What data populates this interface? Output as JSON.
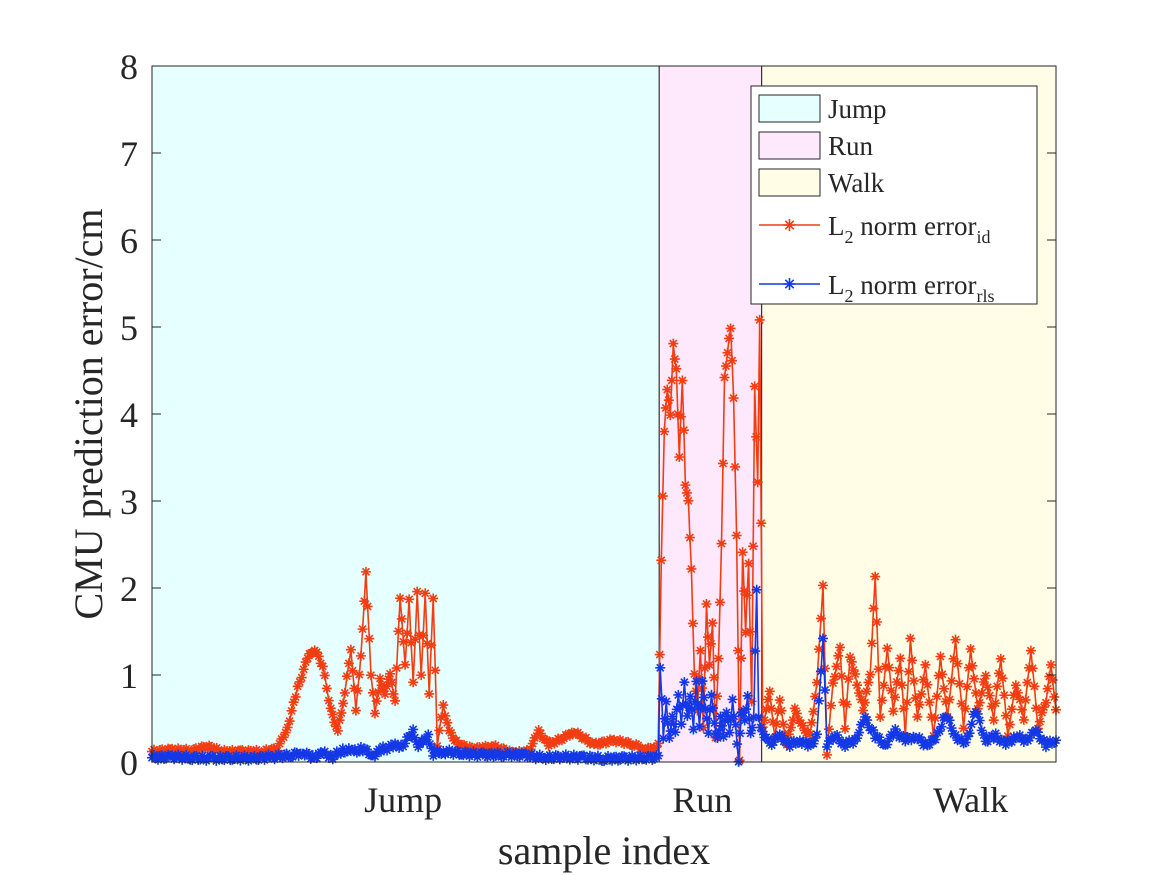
{
  "chart_data": {
    "type": "line",
    "xlabel": "sample index",
    "ylabel": "CMU prediction error/cm",
    "ylim": [
      0,
      8
    ],
    "yticks": [
      0,
      1,
      2,
      3,
      4,
      5,
      6,
      7,
      8
    ],
    "xlim": [
      0,
      900
    ],
    "regions": [
      {
        "name": "Jump",
        "start": 0,
        "end": 505,
        "color": "#e6ffff"
      },
      {
        "name": "Run",
        "start": 505,
        "end": 607,
        "color": "#fde9fb"
      },
      {
        "name": "Walk",
        "start": 607,
        "end": 900,
        "color": "#fffde6"
      }
    ],
    "category_labels": [
      {
        "text": "Jump",
        "x": 250
      },
      {
        "text": "Run",
        "x": 548
      },
      {
        "text": "Walk",
        "x": 815
      }
    ],
    "legend_position": "top-right",
    "legend": [
      {
        "type": "patch",
        "label": "Jump",
        "color": "#e6ffff"
      },
      {
        "type": "patch",
        "label": "Run",
        "color": "#fde9fb"
      },
      {
        "type": "patch",
        "label": "Walk",
        "color": "#fffde6"
      },
      {
        "type": "line",
        "label": "L",
        "sub": "2",
        "label2": " norm error",
        "sub2": "id",
        "color": "#f23c12"
      },
      {
        "type": "line",
        "label": "L",
        "sub": "2",
        "label2": " norm error",
        "sub2": "rls",
        "color": "#1438e6"
      }
    ],
    "series": [
      {
        "name": "L2 norm error_id",
        "color": "#f23c12",
        "points": [
          [
            0,
            0.12
          ],
          [
            20,
            0.14
          ],
          [
            40,
            0.13
          ],
          [
            55,
            0.18
          ],
          [
            70,
            0.12
          ],
          [
            90,
            0.12
          ],
          [
            110,
            0.12
          ],
          [
            125,
            0.15
          ],
          [
            135,
            0.4
          ],
          [
            145,
            0.85
          ],
          [
            155,
            1.2
          ],
          [
            162,
            1.3
          ],
          [
            170,
            1.1
          ],
          [
            178,
            0.6
          ],
          [
            185,
            0.35
          ],
          [
            192,
            0.8
          ],
          [
            198,
            1.3
          ],
          [
            203,
            0.6
          ],
          [
            208,
            1.2
          ],
          [
            213,
            2.2
          ],
          [
            218,
            1.0
          ],
          [
            222,
            0.55
          ],
          [
            227,
            0.95
          ],
          [
            232,
            0.8
          ],
          [
            237,
            1.0
          ],
          [
            242,
            0.7
          ],
          [
            247,
            1.9
          ],
          [
            252,
            1.1
          ],
          [
            256,
            1.85
          ],
          [
            260,
            0.9
          ],
          [
            264,
            1.95
          ],
          [
            268,
            1.0
          ],
          [
            272,
            1.95
          ],
          [
            276,
            0.8
          ],
          [
            280,
            1.9
          ],
          [
            284,
            0.2
          ],
          [
            290,
            0.65
          ],
          [
            296,
            0.35
          ],
          [
            305,
            0.2
          ],
          [
            320,
            0.15
          ],
          [
            340,
            0.18
          ],
          [
            360,
            0.1
          ],
          [
            375,
            0.12
          ],
          [
            385,
            0.35
          ],
          [
            395,
            0.2
          ],
          [
            410,
            0.28
          ],
          [
            420,
            0.35
          ],
          [
            440,
            0.2
          ],
          [
            460,
            0.25
          ],
          [
            480,
            0.2
          ],
          [
            490,
            0.15
          ],
          [
            500,
            0.15
          ],
          [
            504,
            0.2
          ],
          [
            507,
            2.3
          ],
          [
            510,
            3.8
          ],
          [
            513,
            4.3
          ],
          [
            516,
            4.0
          ],
          [
            519,
            4.8
          ],
          [
            522,
            4.5
          ],
          [
            525,
            3.5
          ],
          [
            528,
            4.4
          ],
          [
            531,
            3.2
          ],
          [
            534,
            3.0
          ],
          [
            537,
            2.2
          ],
          [
            540,
            1.0
          ],
          [
            543,
            0.6
          ],
          [
            546,
            1.3
          ],
          [
            549,
            0.4
          ],
          [
            552,
            1.8
          ],
          [
            555,
            1.1
          ],
          [
            558,
            1.6
          ],
          [
            561,
            0.3
          ],
          [
            564,
            1.2
          ],
          [
            567,
            2.5
          ],
          [
            570,
            4.4
          ],
          [
            573,
            4.7
          ],
          [
            576,
            5.0
          ],
          [
            579,
            4.2
          ],
          [
            582,
            2.6
          ],
          [
            585,
            0.0
          ],
          [
            588,
            2.4
          ],
          [
            591,
            1.5
          ],
          [
            594,
            2.3
          ],
          [
            597,
            0.7
          ],
          [
            600,
            4.3
          ],
          [
            603,
            3.2
          ],
          [
            605,
            5.1
          ],
          [
            608,
            0.4
          ],
          [
            615,
            0.8
          ],
          [
            620,
            0.3
          ],
          [
            625,
            0.7
          ],
          [
            632,
            0.2
          ],
          [
            640,
            0.6
          ],
          [
            648,
            0.4
          ],
          [
            655,
            0.3
          ],
          [
            662,
            0.9
          ],
          [
            668,
            2.05
          ],
          [
            672,
            0.1
          ],
          [
            678,
            0.9
          ],
          [
            685,
            1.3
          ],
          [
            690,
            0.4
          ],
          [
            695,
            1.2
          ],
          [
            700,
            1.0
          ],
          [
            708,
            0.6
          ],
          [
            715,
            1.0
          ],
          [
            720,
            2.15
          ],
          [
            725,
            0.5
          ],
          [
            732,
            1.3
          ],
          [
            738,
            0.6
          ],
          [
            745,
            1.2
          ],
          [
            750,
            0.3
          ],
          [
            755,
            1.4
          ],
          [
            762,
            0.5
          ],
          [
            770,
            1.1
          ],
          [
            778,
            0.3
          ],
          [
            785,
            1.2
          ],
          [
            792,
            0.5
          ],
          [
            800,
            1.4
          ],
          [
            808,
            0.4
          ],
          [
            815,
            1.3
          ],
          [
            822,
            0.6
          ],
          [
            830,
            1.0
          ],
          [
            838,
            0.5
          ],
          [
            845,
            1.2
          ],
          [
            852,
            0.3
          ],
          [
            860,
            0.9
          ],
          [
            868,
            0.5
          ],
          [
            875,
            1.3
          ],
          [
            882,
            0.4
          ],
          [
            890,
            0.7
          ],
          [
            895,
            1.1
          ],
          [
            900,
            0.6
          ]
        ]
      },
      {
        "name": "L2 norm error_rls",
        "color": "#1438e6",
        "points": [
          [
            0,
            0.05
          ],
          [
            20,
            0.06
          ],
          [
            40,
            0.05
          ],
          [
            60,
            0.04
          ],
          [
            80,
            0.05
          ],
          [
            100,
            0.04
          ],
          [
            120,
            0.06
          ],
          [
            140,
            0.08
          ],
          [
            150,
            0.11
          ],
          [
            160,
            0.05
          ],
          [
            170,
            0.1
          ],
          [
            180,
            0.06
          ],
          [
            190,
            0.14
          ],
          [
            200,
            0.12
          ],
          [
            210,
            0.15
          ],
          [
            220,
            0.08
          ],
          [
            230,
            0.15
          ],
          [
            240,
            0.18
          ],
          [
            250,
            0.2
          ],
          [
            260,
            0.35
          ],
          [
            265,
            0.2
          ],
          [
            270,
            0.22
          ],
          [
            275,
            0.3
          ],
          [
            280,
            0.1
          ],
          [
            290,
            0.12
          ],
          [
            310,
            0.1
          ],
          [
            330,
            0.08
          ],
          [
            350,
            0.09
          ],
          [
            370,
            0.08
          ],
          [
            390,
            0.05
          ],
          [
            410,
            0.06
          ],
          [
            430,
            0.05
          ],
          [
            450,
            0.04
          ],
          [
            470,
            0.04
          ],
          [
            490,
            0.05
          ],
          [
            504,
            0.05
          ],
          [
            506,
            1.1
          ],
          [
            509,
            0.3
          ],
          [
            512,
            0.7
          ],
          [
            515,
            0.25
          ],
          [
            518,
            0.5
          ],
          [
            521,
            0.35
          ],
          [
            524,
            0.8
          ],
          [
            527,
            0.45
          ],
          [
            530,
            0.9
          ],
          [
            533,
            0.5
          ],
          [
            536,
            0.75
          ],
          [
            539,
            0.4
          ],
          [
            542,
            0.95
          ],
          [
            545,
            0.4
          ],
          [
            548,
            0.9
          ],
          [
            551,
            0.6
          ],
          [
            554,
            0.35
          ],
          [
            557,
            0.8
          ],
          [
            560,
            0.45
          ],
          [
            563,
            0.25
          ],
          [
            566,
            0.5
          ],
          [
            569,
            0.3
          ],
          [
            572,
            0.6
          ],
          [
            575,
            0.35
          ],
          [
            578,
            0.7
          ],
          [
            581,
            0.4
          ],
          [
            584,
            0.0
          ],
          [
            587,
            0.6
          ],
          [
            590,
            0.5
          ],
          [
            593,
            0.75
          ],
          [
            596,
            0.3
          ],
          [
            599,
            0.5
          ],
          [
            602,
            2.0
          ],
          [
            604,
            0.5
          ],
          [
            608,
            0.35
          ],
          [
            615,
            0.2
          ],
          [
            625,
            0.3
          ],
          [
            635,
            0.2
          ],
          [
            645,
            0.25
          ],
          [
            655,
            0.18
          ],
          [
            662,
            0.3
          ],
          [
            668,
            1.45
          ],
          [
            672,
            0.2
          ],
          [
            680,
            0.3
          ],
          [
            690,
            0.2
          ],
          [
            700,
            0.25
          ],
          [
            710,
            0.5
          ],
          [
            720,
            0.3
          ],
          [
            730,
            0.2
          ],
          [
            740,
            0.35
          ],
          [
            750,
            0.25
          ],
          [
            760,
            0.3
          ],
          [
            770,
            0.2
          ],
          [
            780,
            0.25
          ],
          [
            790,
            0.55
          ],
          [
            800,
            0.3
          ],
          [
            810,
            0.2
          ],
          [
            820,
            0.6
          ],
          [
            830,
            0.25
          ],
          [
            840,
            0.3
          ],
          [
            850,
            0.2
          ],
          [
            860,
            0.3
          ],
          [
            870,
            0.25
          ],
          [
            880,
            0.35
          ],
          [
            890,
            0.2
          ],
          [
            900,
            0.25
          ]
        ]
      }
    ]
  }
}
